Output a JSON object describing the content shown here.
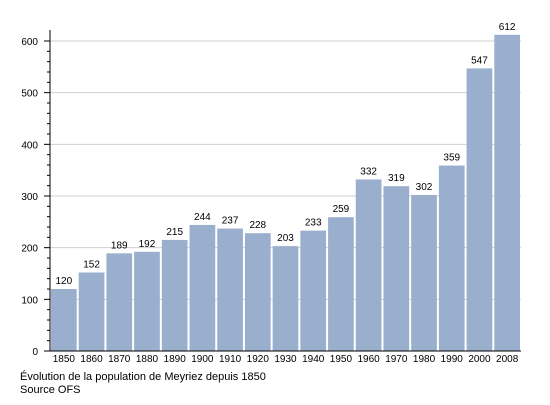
{
  "chart_data": {
    "type": "bar",
    "categories": [
      "1850",
      "1860",
      "1870",
      "1880",
      "1890",
      "1900",
      "1910",
      "1920",
      "1930",
      "1940",
      "1950",
      "1960",
      "1970",
      "1980",
      "1990",
      "2000",
      "2008"
    ],
    "values": [
      120,
      152,
      189,
      192,
      215,
      244,
      237,
      228,
      203,
      233,
      259,
      332,
      319,
      302,
      359,
      547,
      612
    ],
    "title": "",
    "xlabel": "",
    "ylabel": "",
    "ylim": [
      0,
      620
    ],
    "yticks": [
      0,
      100,
      200,
      300,
      400,
      500,
      600
    ],
    "grid": true,
    "bar_color": "#9aafcd"
  },
  "caption": {
    "line1": "Évolution de la population de Meyriez depuis 1850",
    "line2": "Source OFS"
  }
}
